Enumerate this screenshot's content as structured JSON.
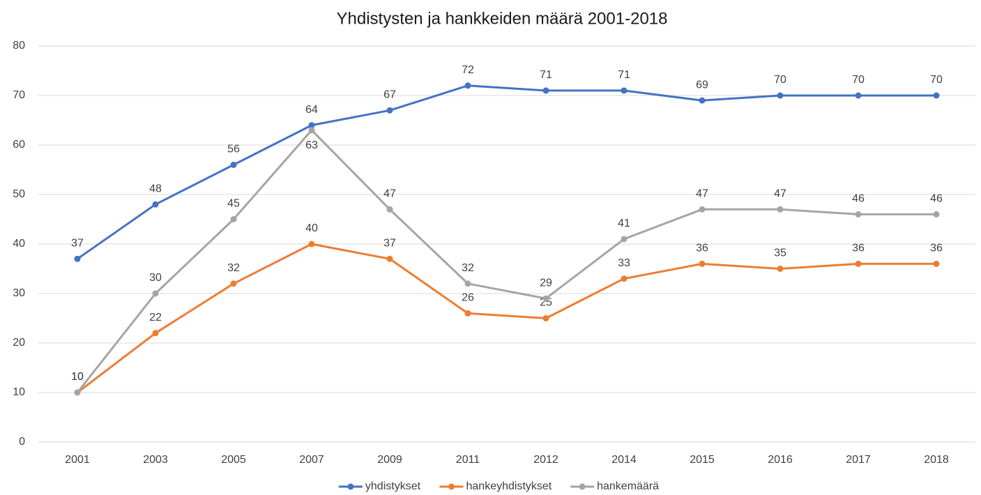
{
  "chart_data": {
    "type": "line",
    "title": "Yhdistysten ja hankkeiden määrä 2001-2018",
    "categories": [
      "2001",
      "2003",
      "2005",
      "2007",
      "2009",
      "2011",
      "2012",
      "2014",
      "2015",
      "2016",
      "2017",
      "2018"
    ],
    "series": [
      {
        "name": "yhdistykset",
        "color": "#4472c4",
        "values": [
          37,
          48,
          56,
          64,
          67,
          72,
          71,
          71,
          69,
          70,
          70,
          70
        ]
      },
      {
        "name": "hankeyhdistykset",
        "color": "#ed7d31",
        "values": [
          10,
          22,
          32,
          40,
          37,
          26,
          25,
          33,
          36,
          35,
          36,
          36
        ]
      },
      {
        "name": "hankemäärä",
        "color": "#a5a5a5",
        "values": [
          10,
          30,
          45,
          63,
          47,
          32,
          29,
          41,
          47,
          47,
          46,
          46
        ]
      }
    ],
    "ylim": [
      0,
      80
    ],
    "yticks": [
      0,
      10,
      20,
      30,
      40,
      50,
      60,
      70,
      80
    ],
    "grid": true,
    "legend": "bottom"
  }
}
